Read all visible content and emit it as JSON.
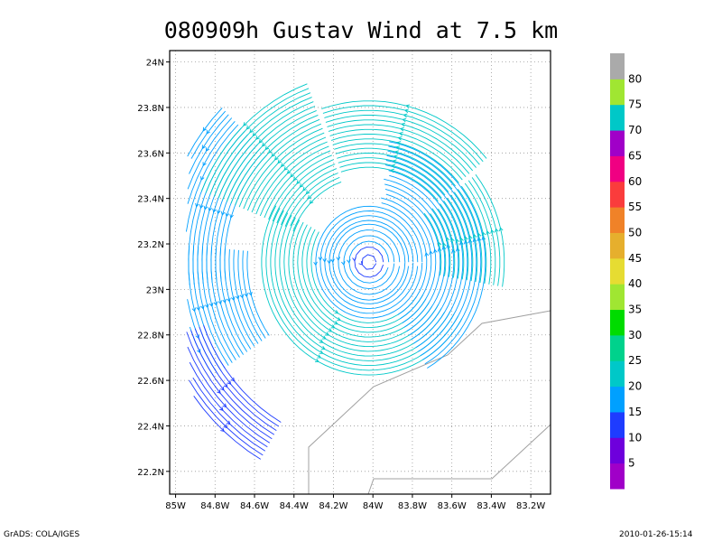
{
  "chart_data": {
    "type": "vector_field",
    "title": "080909h Gustav Wind at 7.5 km",
    "x_ticks": [
      "85W",
      "84.8W",
      "84.6W",
      "84.4W",
      "84.2W",
      "84W",
      "83.8W",
      "83.6W",
      "83.4W",
      "83.2W"
    ],
    "x_tick_values": [
      -85.0,
      -84.8,
      -84.6,
      -84.4,
      -84.2,
      -84.0,
      -83.8,
      -83.6,
      -83.4,
      -83.2
    ],
    "y_ticks": [
      "24N",
      "23.8N",
      "23.6N",
      "23.4N",
      "23.2N",
      "23N",
      "22.8N",
      "22.6N",
      "22.4N",
      "22.2N"
    ],
    "y_tick_values": [
      24.0,
      23.8,
      23.6,
      23.4,
      23.2,
      23.0,
      22.8,
      22.6,
      22.4,
      22.2
    ],
    "xlim": [
      -85.03,
      -83.1
    ],
    "ylim": [
      22.1,
      24.05
    ],
    "grid": true,
    "storm_center": {
      "lon": -84.02,
      "lat": 23.12
    },
    "colorbar": {
      "labels": [
        "5",
        "10",
        "15",
        "20",
        "25",
        "30",
        "35",
        "40",
        "45",
        "50",
        "55",
        "60",
        "65",
        "70",
        "75",
        "80"
      ],
      "colors": [
        "#a000c8",
        "#6e00dc",
        "#1e3cff",
        "#00a0ff",
        "#00c8c8",
        "#00d28c",
        "#00dc00",
        "#a0e632",
        "#e6dc32",
        "#e6af2d",
        "#f08228",
        "#fa3c3c",
        "#f00082",
        "#a000c8",
        "#00c8c8",
        "#a0e632",
        "#aaaaaa"
      ]
    },
    "footer_left": "GrADS: COLA/IGES",
    "footer_right": "2010-01-26-15:14"
  }
}
